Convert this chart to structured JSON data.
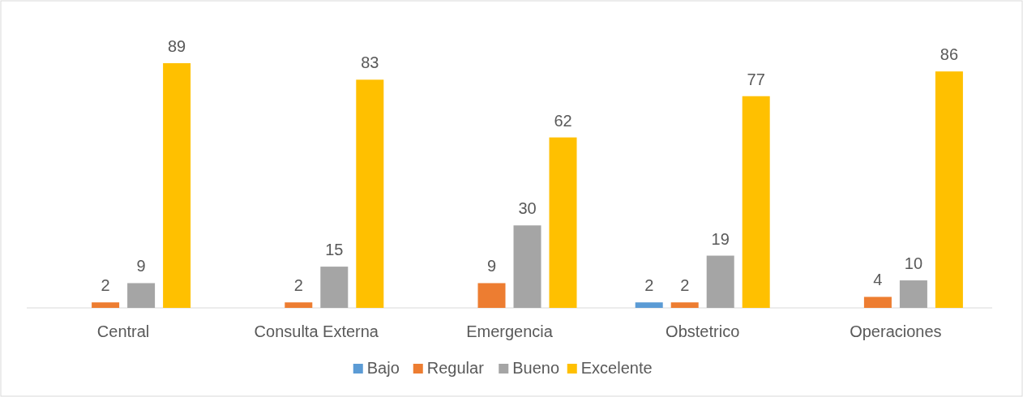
{
  "chart_data": {
    "type": "bar",
    "categories": [
      "Central",
      "Consulta Externa",
      "Emergencia",
      "Obstetrico",
      "Operaciones"
    ],
    "series": [
      {
        "name": "Bajo",
        "color": "#5b9bd5",
        "values": [
          null,
          null,
          null,
          2,
          null
        ]
      },
      {
        "name": "Regular",
        "color": "#ed7d31",
        "values": [
          2,
          2,
          9,
          2,
          4
        ]
      },
      {
        "name": "Bueno",
        "color": "#a5a5a5",
        "values": [
          9,
          15,
          30,
          19,
          10
        ]
      },
      {
        "name": "Excelente",
        "color": "#ffc000",
        "values": [
          89,
          83,
          62,
          77,
          86
        ]
      }
    ],
    "data_labels": true,
    "legend": "bottom"
  }
}
